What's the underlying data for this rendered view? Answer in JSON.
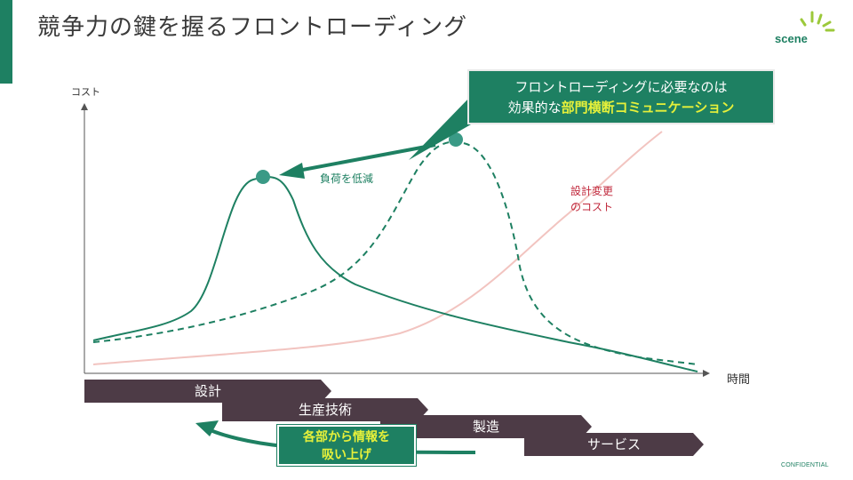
{
  "header": {
    "title": "競争力の鍵を握るフロントローディング",
    "logo_text": "scene"
  },
  "diagram": {
    "axis_y_label": "コスト",
    "axis_x_label": "時間",
    "callout_line1": "フロントローディングに必要なのは",
    "callout_line2_prefix": "効果的な",
    "callout_line2_highlight": "部門横断コミュニケーション",
    "reduce_label": "負荷を低減",
    "change_cost_line1": "設計変更",
    "change_cost_line2": "のコスト",
    "phases": [
      "設計",
      "生産技術",
      "製造",
      "サービス"
    ],
    "absorb_line1": "各部から情報を",
    "absorb_line2": "吸い上げ"
  },
  "footer": {
    "confidential": "CONFIDENTIAL"
  },
  "colors": {
    "accent": "#1e8062",
    "highlight": "#e6f03a",
    "phase_bar": "#4d3b46",
    "change_cost": "#c0283c",
    "change_cost_line": "#f2c4c0"
  }
}
